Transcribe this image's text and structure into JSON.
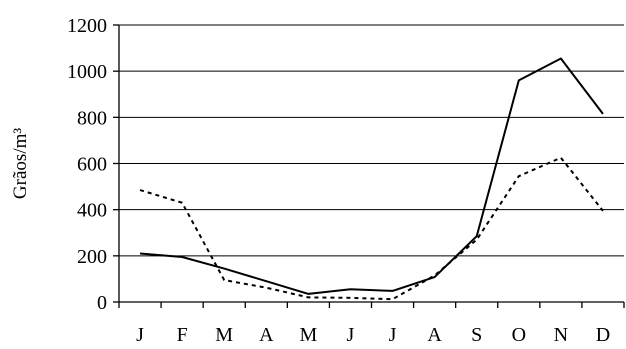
{
  "chart_data": {
    "type": "line",
    "title": "",
    "xlabel": "",
    "ylabel": "Grãos/m³",
    "categories": [
      "J",
      "F",
      "M",
      "A",
      "M",
      "J",
      "J",
      "A",
      "S",
      "O",
      "N",
      "D"
    ],
    "ylim": [
      0,
      1200
    ],
    "yticks": [
      "0",
      "200",
      "400",
      "600",
      "800",
      "1000",
      "1200"
    ],
    "grid": "horizontal",
    "series": [
      {
        "style": "solid",
        "color": "#000000",
        "values": [
          210,
          195,
          145,
          90,
          35,
          55,
          48,
          108,
          285,
          960,
          1055,
          815
        ]
      },
      {
        "style": "dashed",
        "color": "#000000",
        "values": [
          485,
          430,
          95,
          62,
          20,
          18,
          12,
          115,
          270,
          545,
          625,
          395
        ]
      }
    ]
  }
}
